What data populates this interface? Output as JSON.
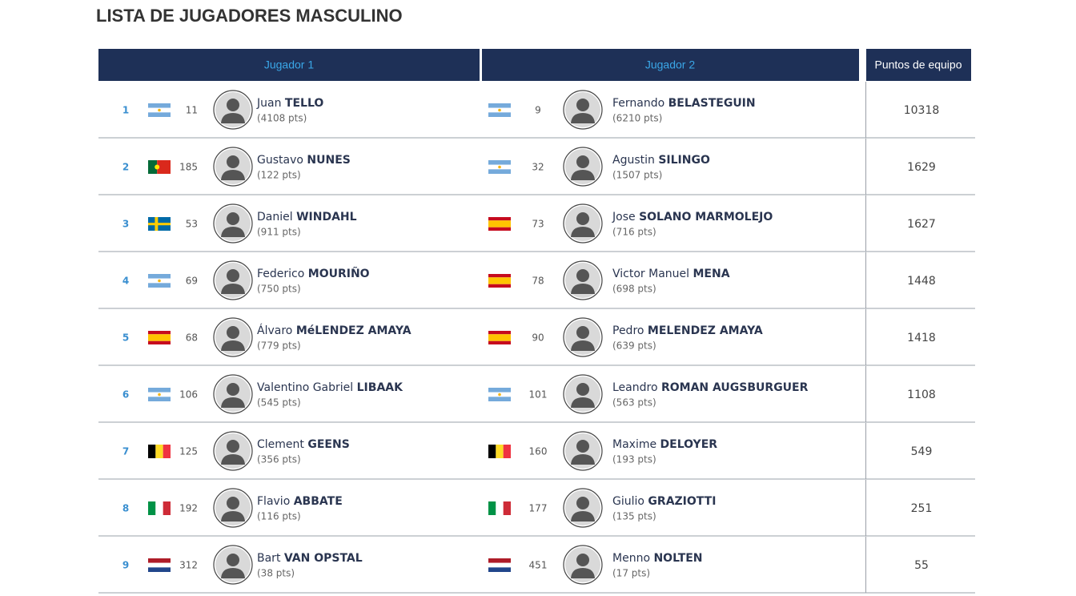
{
  "header": {
    "title": "LISTA DE JUGADORES MASCULINO"
  },
  "table": {
    "columns": [
      "Jugador 1",
      "Jugador 2",
      "Puntos de equipo"
    ],
    "rows": [
      {
        "position": 1,
        "player1": {
          "rank": 11,
          "first": "Juan",
          "last": "TELLO",
          "pts": "(4108 pts)"
        },
        "player2": {
          "rank": 9,
          "first": "Fernando",
          "last": "BELASTEGUIN",
          "pts": "(6210 pts)"
        },
        "team_points": 10318
      },
      {
        "position": 2,
        "player1": {
          "rank": 185,
          "first": "Gustavo",
          "last": "NUNES",
          "pts": "(122 pts)"
        },
        "player2": {
          "rank": 32,
          "first": "Agustin",
          "last": "SILINGO",
          "pts": "(1507 pts)"
        },
        "team_points": 1629
      },
      {
        "position": 3,
        "player1": {
          "rank": 53,
          "first": "Daniel",
          "last": "WINDAHL",
          "pts": "(911 pts)"
        },
        "player2": {
          "rank": 73,
          "first": "Jose",
          "last": "SOLANO MARMOLEJO",
          "pts": "(716 pts)"
        },
        "team_points": 1627
      },
      {
        "position": 4,
        "player1": {
          "rank": 69,
          "first": "Federico",
          "last": "MOURIÑO",
          "pts": "(750 pts)"
        },
        "player2": {
          "rank": 78,
          "first": "Victor Manuel",
          "last": "MENA",
          "pts": "(698 pts)"
        },
        "team_points": 1448
      },
      {
        "position": 5,
        "player1": {
          "rank": 68,
          "first": "Álvaro",
          "last": "MéLENDEZ AMAYA",
          "pts": "(779 pts)"
        },
        "player2": {
          "rank": 90,
          "first": "Pedro",
          "last": "MELENDEZ AMAYA",
          "pts": "(639 pts)"
        },
        "team_points": 1418
      },
      {
        "position": 6,
        "player1": {
          "rank": 106,
          "first": "Valentino Gabriel",
          "last": "LIBAAK",
          "pts": "(545 pts)"
        },
        "player2": {
          "rank": 101,
          "first": "Leandro",
          "last": "ROMAN AUGSBURGUER",
          "pts": "(563 pts)"
        },
        "team_points": 1108
      },
      {
        "position": 7,
        "player1": {
          "rank": 125,
          "first": "Clement",
          "last": "GEENS",
          "pts": "(356 pts)"
        },
        "player2": {
          "rank": 160,
          "first": "Maxime",
          "last": "DELOYER",
          "pts": "(193 pts)"
        },
        "team_points": 549
      },
      {
        "position": 8,
        "player1": {
          "rank": 192,
          "first": "Flavio",
          "last": "ABBATE",
          "pts": "(116 pts)"
        },
        "player2": {
          "rank": 177,
          "first": "Giulio",
          "last": "GRAZIOTTI",
          "pts": "(135 pts)"
        },
        "team_points": 251
      },
      {
        "position": 9,
        "player1": {
          "rank": 312,
          "first": "Bart",
          "last": "VAN OPSTAL",
          "pts": "(38 pts)"
        },
        "player2": {
          "rank": 451,
          "first": "Menno",
          "last": "NOLTEN",
          "pts": "(17 pts)"
        },
        "team_points": 55
      }
    ]
  }
}
